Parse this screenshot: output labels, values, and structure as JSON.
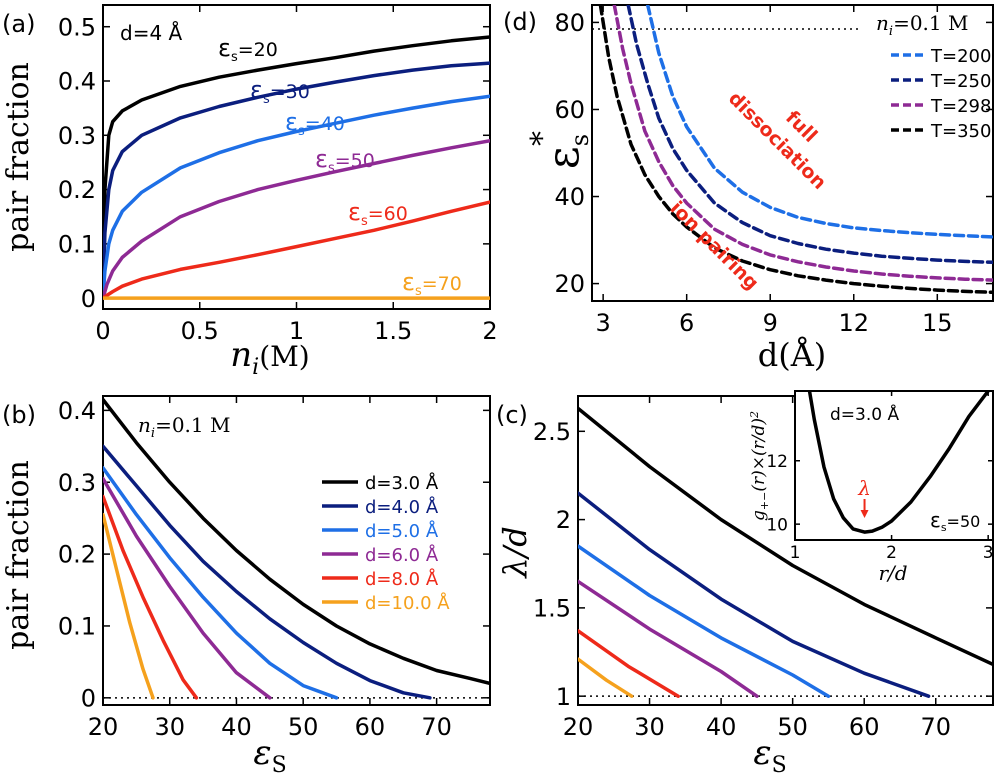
{
  "chart_data": [
    {
      "panel": "a",
      "type": "line",
      "panel_label": "(a)",
      "annotation": "d=4 Å",
      "xlabel": "n",
      "xlabel_sub": "i",
      "xlabel_unit": "(M)",
      "ylabel": "pair fraction",
      "xlim": [
        0,
        2
      ],
      "ylim": [
        -0.02,
        0.54
      ],
      "xticks": [
        0,
        0.5,
        1,
        1.5,
        2
      ],
      "xtick_labels": [
        "0",
        "0.5",
        "1",
        "1.5",
        "2"
      ],
      "yticks": [
        0,
        0.1,
        0.2,
        0.3,
        0.4,
        0.5
      ],
      "ytick_labels": [
        "0",
        "0.1",
        "0.2",
        "0.3",
        "0.4",
        "0.5"
      ],
      "series": [
        {
          "name": "εs=20",
          "label_main": "ε",
          "label_sub": "s",
          "label_val": "=20",
          "color": "#000000",
          "x": [
            0,
            0.01,
            0.03,
            0.05,
            0.1,
            0.2,
            0.4,
            0.6,
            0.8,
            1.0,
            1.2,
            1.4,
            1.6,
            1.8,
            2.0
          ],
          "y": [
            0,
            0.2,
            0.3,
            0.325,
            0.345,
            0.365,
            0.39,
            0.407,
            0.42,
            0.432,
            0.443,
            0.455,
            0.465,
            0.474,
            0.481
          ]
        },
        {
          "name": "εs=30",
          "label_main": "ε",
          "label_sub": "s",
          "label_val": "=30",
          "color": "#0b1e7e",
          "x": [
            0,
            0.01,
            0.03,
            0.05,
            0.1,
            0.2,
            0.4,
            0.6,
            0.8,
            1.0,
            1.2,
            1.4,
            1.6,
            1.8,
            2.0
          ],
          "y": [
            0,
            0.12,
            0.2,
            0.235,
            0.27,
            0.3,
            0.332,
            0.353,
            0.37,
            0.385,
            0.398,
            0.41,
            0.42,
            0.428,
            0.433
          ]
        },
        {
          "name": "εs=40",
          "label_main": "ε",
          "label_sub": "s",
          "label_val": "=40",
          "color": "#1e6fe6",
          "x": [
            0,
            0.01,
            0.03,
            0.05,
            0.1,
            0.2,
            0.4,
            0.6,
            0.8,
            1.0,
            1.2,
            1.4,
            1.6,
            1.8,
            2.0
          ],
          "y": [
            0,
            0.05,
            0.1,
            0.125,
            0.16,
            0.195,
            0.24,
            0.268,
            0.29,
            0.307,
            0.322,
            0.337,
            0.35,
            0.362,
            0.372
          ]
        },
        {
          "name": "εs=50",
          "label_main": "ε",
          "label_sub": "s",
          "label_val": "=50",
          "color": "#8e2a94",
          "x": [
            0,
            0.02,
            0.05,
            0.1,
            0.2,
            0.4,
            0.6,
            0.8,
            1.0,
            1.2,
            1.4,
            1.6,
            1.8,
            2.0
          ],
          "y": [
            0,
            0.025,
            0.05,
            0.075,
            0.105,
            0.15,
            0.178,
            0.2,
            0.217,
            0.233,
            0.248,
            0.263,
            0.277,
            0.29
          ]
        },
        {
          "name": "εs=60",
          "label_main": "ε",
          "label_sub": "s",
          "label_val": "=60",
          "color": "#ee2a1a",
          "x": [
            0,
            0.02,
            0.05,
            0.1,
            0.2,
            0.4,
            0.6,
            0.8,
            1.0,
            1.2,
            1.4,
            1.6,
            1.8,
            2.0
          ],
          "y": [
            0,
            0.005,
            0.012,
            0.022,
            0.035,
            0.053,
            0.066,
            0.08,
            0.095,
            0.11,
            0.125,
            0.142,
            0.16,
            0.177
          ]
        },
        {
          "name": "εs=70",
          "label_main": "ε",
          "label_sub": "s",
          "label_val": "=70",
          "color": "#f5a11d",
          "x": [
            0,
            2.0
          ],
          "y": [
            0,
            0
          ]
        }
      ]
    },
    {
      "panel": "b",
      "type": "line",
      "panel_label": "(b)",
      "annotation_main": "n",
      "annotation_sub": "i",
      "annotation_val": "=0.1 M",
      "xlabel": "ε",
      "xlabel_sub": "S",
      "ylabel": "pair fraction",
      "xlim": [
        20,
        78
      ],
      "ylim": [
        -0.01,
        0.42
      ],
      "xticks": [
        20,
        30,
        40,
        50,
        60,
        70
      ],
      "xtick_labels": [
        "20",
        "30",
        "40",
        "50",
        "60",
        "70"
      ],
      "yticks": [
        0,
        0.1,
        0.2,
        0.3,
        0.4
      ],
      "ytick_labels": [
        "0",
        "0.1",
        "0.2",
        "0.3",
        "0.4"
      ],
      "series": [
        {
          "name": "d=3.0 Å",
          "color": "#000000",
          "x": [
            20,
            25,
            30,
            35,
            40,
            45,
            50,
            55,
            60,
            65,
            70,
            75,
            78
          ],
          "y": [
            0.415,
            0.355,
            0.3,
            0.25,
            0.205,
            0.165,
            0.13,
            0.1,
            0.075,
            0.055,
            0.038,
            0.027,
            0.02
          ]
        },
        {
          "name": "d=4.0 Å",
          "color": "#0b1e7e",
          "x": [
            20,
            25,
            30,
            35,
            40,
            45,
            50,
            55,
            60,
            65,
            69
          ],
          "y": [
            0.35,
            0.295,
            0.24,
            0.19,
            0.148,
            0.11,
            0.077,
            0.048,
            0.024,
            0.007,
            0
          ]
        },
        {
          "name": "d=5.0 Å",
          "color": "#1e6fe6",
          "x": [
            20,
            25,
            30,
            35,
            40,
            45,
            50,
            55
          ],
          "y": [
            0.32,
            0.255,
            0.195,
            0.14,
            0.09,
            0.048,
            0.017,
            0
          ]
        },
        {
          "name": "d=6.0 Å",
          "color": "#8e2a94",
          "x": [
            20,
            25,
            30,
            35,
            40,
            45
          ],
          "y": [
            0.305,
            0.225,
            0.155,
            0.09,
            0.035,
            0
          ]
        },
        {
          "name": "d=8.0 Å",
          "color": "#ee2a1a",
          "x": [
            20,
            23,
            26,
            29,
            32,
            34
          ],
          "y": [
            0.28,
            0.205,
            0.14,
            0.08,
            0.025,
            0
          ]
        },
        {
          "name": "d=10.0 Å",
          "color": "#f5a11d",
          "x": [
            20,
            22,
            24,
            26,
            27.5
          ],
          "y": [
            0.255,
            0.18,
            0.105,
            0.04,
            0
          ]
        }
      ],
      "baseline": {
        "x": [
          20,
          78
        ],
        "y": [
          0,
          0
        ],
        "style": "dotted"
      }
    },
    {
      "panel": "c",
      "type": "line",
      "panel_label": "(c)",
      "xlabel": "ε",
      "xlabel_sub": "S",
      "ylabel": "λ/d",
      "xlim": [
        20,
        78
      ],
      "ylim": [
        0.95,
        2.7
      ],
      "xticks": [
        20,
        30,
        40,
        50,
        60,
        70
      ],
      "xtick_labels": [
        "20",
        "30",
        "40",
        "50",
        "60",
        "70"
      ],
      "yticks": [
        1,
        1.5,
        2,
        2.5
      ],
      "ytick_labels": [
        "1",
        "1.5",
        "2",
        "2.5"
      ],
      "series": [
        {
          "name": "d=3.0 Å",
          "color": "#000000",
          "x": [
            20,
            30,
            40,
            50,
            60,
            70,
            78
          ],
          "y": [
            2.63,
            2.3,
            2.0,
            1.74,
            1.52,
            1.33,
            1.18
          ]
        },
        {
          "name": "d=4.0 Å",
          "color": "#0b1e7e",
          "x": [
            20,
            30,
            40,
            50,
            60,
            69
          ],
          "y": [
            2.15,
            1.83,
            1.55,
            1.31,
            1.13,
            1.0
          ]
        },
        {
          "name": "d=5.0 Å",
          "color": "#1e6fe6",
          "x": [
            20,
            30,
            40,
            50,
            55
          ],
          "y": [
            1.85,
            1.57,
            1.33,
            1.12,
            1.0
          ]
        },
        {
          "name": "d=6.0 Å",
          "color": "#8e2a94",
          "x": [
            20,
            30,
            40,
            45
          ],
          "y": [
            1.65,
            1.38,
            1.14,
            1.0
          ]
        },
        {
          "name": "d=8.0 Å",
          "color": "#ee2a1a",
          "x": [
            20,
            27,
            34
          ],
          "y": [
            1.37,
            1.17,
            1.0
          ]
        },
        {
          "name": "d=10.0 Å",
          "color": "#f5a11d",
          "x": [
            20,
            24,
            27.5
          ],
          "y": [
            1.21,
            1.09,
            1.0
          ]
        }
      ],
      "baseline": {
        "x": [
          20,
          78
        ],
        "y": [
          1,
          1
        ],
        "style": "dotted"
      },
      "inset": {
        "annotation": "d=3.0 Å",
        "label_main": "ε",
        "label_sub": "s",
        "label_val": "=50",
        "marker_label": "λ",
        "xlabel": "r/d",
        "ylabel": "g+−(r)×(r/d)²",
        "ylabel_main": "g",
        "ylabel_sub": "+−",
        "ylabel_rest": "(r)×(r/d)",
        "ylabel_sup": "2",
        "xlim": [
          1,
          3.05
        ],
        "ylim": [
          9.5,
          14.2
        ],
        "xticks": [
          1,
          2,
          3
        ],
        "xtick_labels": [
          "1",
          "2",
          "3"
        ],
        "yticks": [
          10,
          12
        ],
        "ytick_labels": [
          "10",
          "12"
        ],
        "series": [
          {
            "name": "g(r)(r/d)^2",
            "color": "#000000",
            "x": [
              1.15,
              1.2,
              1.3,
              1.4,
              1.5,
              1.6,
              1.72,
              1.8,
              1.9,
              2.0,
              2.2,
              2.4,
              2.6,
              2.8,
              3.0
            ],
            "y": [
              14.2,
              13.3,
              11.8,
              10.8,
              10.2,
              9.85,
              9.75,
              9.78,
              9.9,
              10.1,
              10.7,
              11.5,
              12.4,
              13.4,
              14.2
            ]
          }
        ],
        "marker_x": 1.72
      }
    },
    {
      "panel": "d",
      "type": "line",
      "panel_label": "(d)",
      "annotation_main": "n",
      "annotation_sub": "i",
      "annotation_val": "=0.1 M",
      "region_upper": [
        "full",
        "dissociation"
      ],
      "region_lower": "ion pairing",
      "xlabel": "d(Å)",
      "ylabel": "ε",
      "ylabel_sub": "s",
      "ylabel_sup": "*",
      "xlim": [
        2.6,
        17
      ],
      "ylim": [
        16,
        84
      ],
      "xticks": [
        3,
        6,
        9,
        12,
        15
      ],
      "xtick_labels": [
        "3",
        "6",
        "9",
        "12",
        "15"
      ],
      "yticks": [
        20,
        40,
        60,
        80
      ],
      "ytick_labels": [
        "20",
        "40",
        "60",
        "80"
      ],
      "hline": {
        "y": 78.5,
        "style": "dotted"
      },
      "series": [
        {
          "name": "T=200 K",
          "color": "#1e6fe6",
          "x": [
            4.6,
            5.0,
            5.5,
            6,
            7,
            8,
            9,
            10,
            11,
            12,
            13,
            14,
            15,
            16,
            17
          ],
          "y": [
            84,
            73,
            63,
            56,
            46.5,
            41,
            37.5,
            35.2,
            33.8,
            32.8,
            32.2,
            31.7,
            31.3,
            31.0,
            30.7
          ]
        },
        {
          "name": "T=250 K",
          "color": "#0b1e7e",
          "x": [
            3.9,
            4.2,
            4.6,
            5,
            5.5,
            6,
            7,
            8,
            9,
            10,
            11,
            12,
            13,
            14,
            15,
            16,
            17
          ],
          "y": [
            84,
            75,
            66,
            58,
            51,
            46,
            38.5,
            34,
            31,
            29.2,
            27.9,
            27,
            26.3,
            25.8,
            25.4,
            25.1,
            24.9
          ]
        },
        {
          "name": "T=298 K",
          "color": "#8e2a94",
          "x": [
            3.4,
            3.7,
            4,
            4.5,
            5,
            5.5,
            6,
            7,
            8,
            9,
            10,
            11,
            12,
            13,
            14,
            15,
            16,
            17
          ],
          "y": [
            84,
            74,
            66,
            55,
            48,
            42.5,
            38.5,
            32.5,
            29,
            26.6,
            25,
            23.8,
            22.9,
            22.2,
            21.7,
            21.3,
            21.0,
            20.8
          ]
        },
        {
          "name": "T=350 K",
          "color": "#000000",
          "x": [
            2.9,
            3.2,
            3.5,
            4,
            4.5,
            5,
            5.5,
            6,
            7,
            8,
            9,
            10,
            11,
            12,
            13,
            14,
            15,
            16,
            17
          ],
          "y": [
            84,
            72,
            63,
            52,
            45,
            40,
            36,
            33,
            28.2,
            25.2,
            23.2,
            21.8,
            20.8,
            20,
            19.4,
            18.9,
            18.5,
            18.2,
            18.0
          ]
        }
      ]
    }
  ]
}
